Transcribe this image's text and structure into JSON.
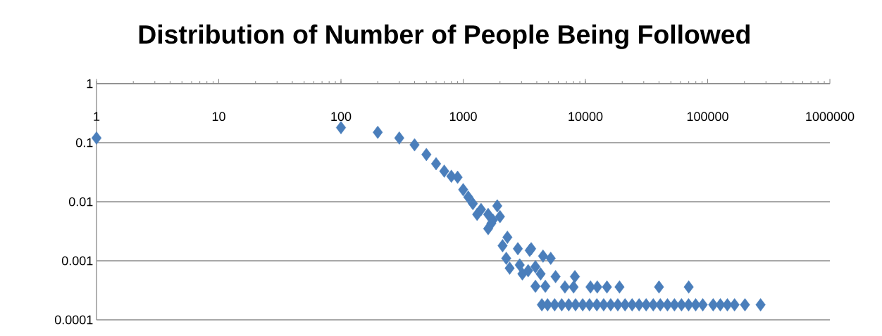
{
  "chart_data": {
    "type": "scatter",
    "title": "Distribution of Number of People Being Followed",
    "x": [
      1,
      100,
      200,
      300,
      400,
      500,
      600,
      700,
      800,
      900,
      1000,
      1100,
      1200,
      1300,
      1400,
      1600,
      1900,
      2000,
      1700,
      1600,
      1750,
      2300,
      2100,
      2800,
      3500,
      3600,
      4500,
      5200,
      2250,
      2400,
      2900,
      3050,
      3400,
      3900,
      4300,
      3900,
      4700,
      5700,
      6800,
      8000,
      8200,
      11000,
      12500,
      15000,
      19000,
      40000,
      70000,
      4400,
      4900,
      5600,
      6400,
      7300,
      8300,
      9500,
      10800,
      12400,
      14100,
      16100,
      18400,
      21100,
      24100,
      27500,
      31400,
      35900,
      41000,
      46900,
      53500,
      61100,
      69800,
      79800,
      91200,
      111000,
      127000,
      145000,
      166000,
      202000,
      271000
    ],
    "values": [
      0.12,
      0.18,
      0.15,
      0.12,
      0.092,
      0.063,
      0.044,
      0.033,
      0.027,
      0.026,
      0.016,
      0.012,
      0.0093,
      0.0061,
      0.0074,
      0.0061,
      0.0085,
      0.0056,
      0.0043,
      0.0035,
      0.0049,
      0.0025,
      0.0018,
      0.0016,
      0.0015,
      0.0016,
      0.0012,
      0.0011,
      0.0011,
      0.00075,
      0.00085,
      0.0006,
      0.00068,
      0.00079,
      0.0006,
      0.00037,
      0.00037,
      0.00054,
      0.00036,
      0.00036,
      0.00054,
      0.00036,
      0.00036,
      0.00036,
      0.00036,
      0.00036,
      0.00036,
      0.00018,
      0.00018,
      0.00018,
      0.00018,
      0.00018,
      0.00018,
      0.00018,
      0.00018,
      0.00018,
      0.00018,
      0.00018,
      0.00018,
      0.00018,
      0.00018,
      0.00018,
      0.00018,
      0.00018,
      0.00018,
      0.00018,
      0.00018,
      0.00018,
      0.00018,
      0.00018,
      0.00018,
      0.00018,
      0.00018,
      0.00018,
      0.00018,
      0.00018,
      0.00018
    ],
    "color": "#4a7ebb",
    "marker": "diamond",
    "log": "xy",
    "grid": "y",
    "xlim": [
      1,
      1000000
    ],
    "ylim": [
      0.0001,
      1
    ],
    "xticks": [
      1,
      10,
      100,
      1000,
      10000,
      100000,
      1000000
    ],
    "yticks": [
      0.0001,
      0.001,
      0.01,
      0.1,
      1
    ]
  }
}
